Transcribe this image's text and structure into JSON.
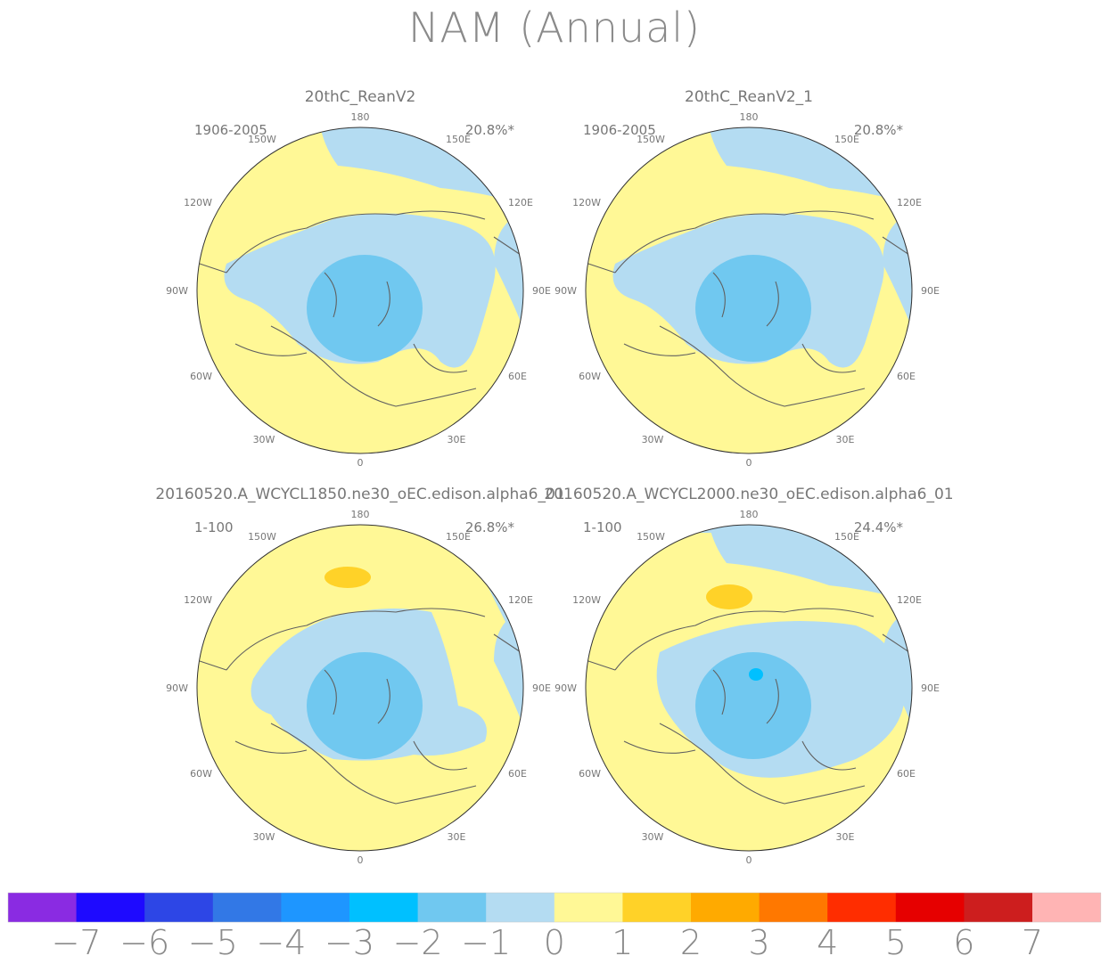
{
  "title": "NAM (Annual)",
  "colors": {
    "land": "#606060",
    "ring": "#333333",
    "label": "#777777"
  },
  "panels": [
    {
      "name": "20thC_ReanV2",
      "period": "1906-2005",
      "pct": "20.8%*",
      "variant": "reanalysis"
    },
    {
      "name": "20thC_ReanV2_1",
      "period": "1906-2005",
      "pct": "20.8%*",
      "variant": "reanalysis"
    },
    {
      "name": "20160520.A_WCYCL1850.ne30_oEC.edison.alpha6_01",
      "period": "1-100",
      "pct": "26.8%*",
      "variant": "model1850"
    },
    {
      "name": "20160520.A_WCYCL2000.ne30_oEC.edison.alpha6_01",
      "period": "1-100",
      "pct": "24.4%*",
      "variant": "model2000"
    }
  ],
  "lon_labels": {
    "n": "180",
    "s": "0",
    "e": "90E",
    "w": "90W",
    "ne1": "150E",
    "ne2": "120E",
    "se1": "60E",
    "se2": "30E",
    "nw1": "150W",
    "nw2": "120W",
    "sw1": "60W",
    "sw2": "30W"
  },
  "colorbar": {
    "labels": [
      "−7",
      "−6",
      "−5",
      "−4",
      "−3",
      "−2",
      "−1",
      "0",
      "1",
      "2",
      "3",
      "4",
      "5",
      "6",
      "7"
    ],
    "colors": [
      "#8a2be2",
      "#1e0aff",
      "#2d46e6",
      "#3278e6",
      "#1e96ff",
      "#00c0ff",
      "#70c8f0",
      "#b4dcf2",
      "#fff896",
      "#ffd228",
      "#ffaa00",
      "#ff7800",
      "#ff2d00",
      "#e60000",
      "#cd1e1e",
      "#ffb4b4"
    ]
  }
}
